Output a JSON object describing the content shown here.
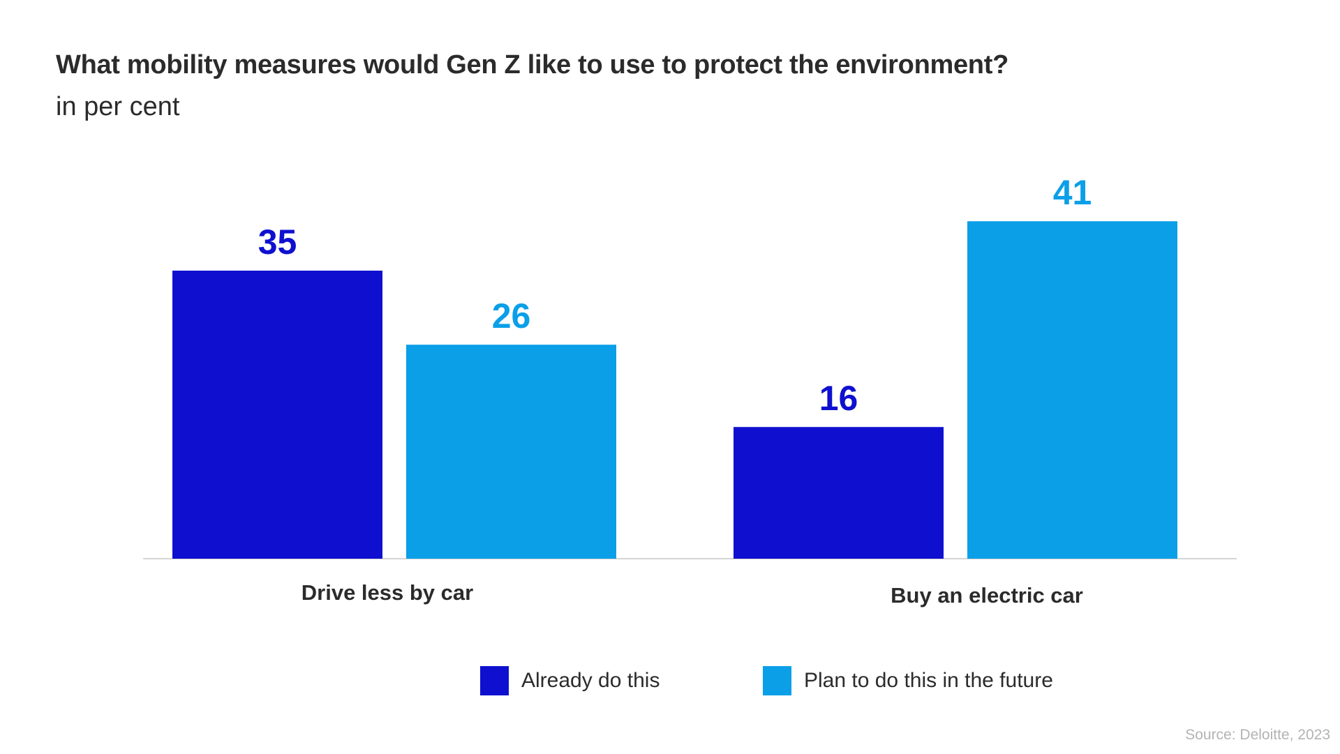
{
  "title": "What mobility measures would Gen Z like to use to protect the environment?",
  "subtitle": "in per cent",
  "colors": {
    "already": "#0f10cf",
    "plan": "#0b9fe8",
    "axis": "#d4d4d4",
    "text": "#2b2b2b",
    "source": "#b3b3b3"
  },
  "chart_data": {
    "type": "bar",
    "title": "What mobility measures would Gen Z like to use to protect the environment?",
    "subtitle": "in per cent",
    "categories": [
      "Drive less by car",
      "Buy an electric car"
    ],
    "series": [
      {
        "name": "Already do this",
        "values": [
          35,
          16
        ]
      },
      {
        "name": "Plan to do this in the future",
        "values": [
          26,
          41
        ]
      }
    ],
    "xlabel": "",
    "ylabel": "",
    "ylim": [
      0,
      45
    ],
    "grid": false,
    "legend": "bottom-center"
  },
  "legend": [
    {
      "label": "Already do this"
    },
    {
      "label": "Plan to do this in the future"
    }
  ],
  "source": "Source: Deloitte, 2023"
}
